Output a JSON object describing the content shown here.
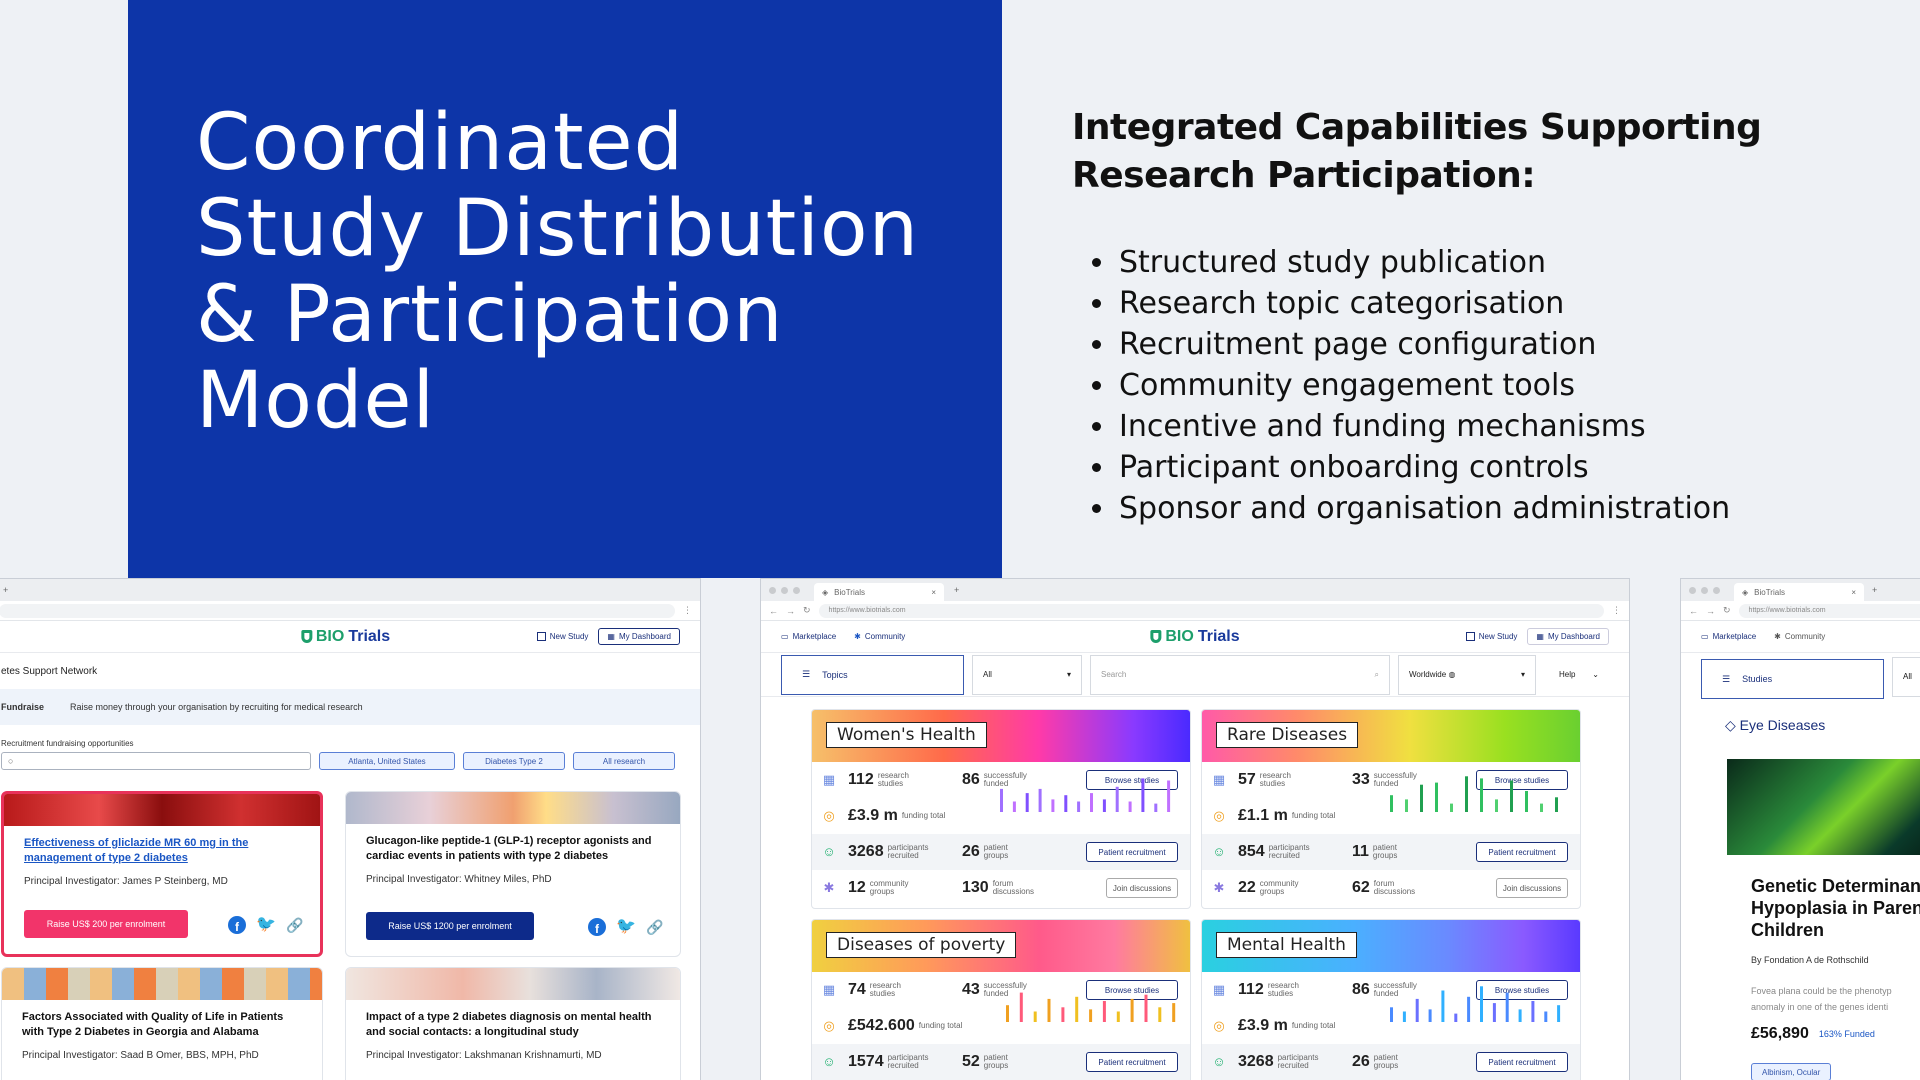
{
  "hero": {
    "title_lines": [
      "Coordinated",
      "Study Distribution",
      "& Participation",
      "Model"
    ]
  },
  "capabilities": {
    "title": "Integrated Capabilities Supporting Research Participation:",
    "items": [
      "Structured study publication",
      "Research topic categorisation",
      "Recruitment page configuration",
      "Community engagement tools",
      "Incentive and funding mechanisms",
      "Participant onboarding controls",
      "Sponsor and organisation administration"
    ]
  },
  "brand": {
    "logo_prefix": "BIO",
    "logo_suffix": "Trials",
    "primary": "#0d35a8",
    "green": "#1d9f6b"
  },
  "browser": {
    "tab_label": "BioTrials",
    "url": "https://www.biotrials.com"
  },
  "window1": {
    "new_study": "New Study",
    "my_dashboard": "My Dashboard",
    "network": "etes Support Network",
    "fund_label": "Fundraise",
    "fund_text": "Raise money through your organisation by recruiting for medical research",
    "opps_label": "Recruitment fundraising opportunities",
    "chips": [
      "Atlanta, United States",
      "Diabetes Type 2",
      "All research"
    ],
    "cards": [
      {
        "title": "Effectiveness of gliclazide MR 60 mg in the management of type 2 diabetes",
        "pi": "Principal Investigator: James P Steinberg, MD",
        "button": "Raise US$ 200 per enrolment"
      },
      {
        "title": "Glucagon-like peptide-1 (GLP-1) receptor agonists and cardiac events in patients with type 2 diabetes",
        "pi": "Principal Investigator: Whitney Miles, PhD",
        "button": "Raise US$ 1200 per enrolment"
      },
      {
        "title": "Factors Associated with Quality of Life in Patients with Type 2 Diabetes in Georgia and Alabama",
        "pi": "Principal Investigator: Saad B Omer, BBS, MPH, PhD"
      },
      {
        "title": "Impact of a type 2 diabetes diagnosis on mental health and social contacts: a longitudinal study",
        "pi": "Principal Investigator: Lakshmanan Krishnamurti, MD"
      }
    ]
  },
  "window2": {
    "nav": {
      "marketplace": "Marketplace",
      "community": "Community",
      "new_study": "New Study",
      "my_dashboard": "My Dashboard"
    },
    "filters": {
      "topics": "Topics",
      "all": "All",
      "search_placeholder": "Search",
      "region": "Worldwide",
      "help": "Help"
    },
    "labels": {
      "research_studies": "research studies",
      "successfully_funded": "successfully funded",
      "funding_total": "funding total",
      "participants_recruited": "participants recruited",
      "patient_groups": "patient groups",
      "community_groups": "community groups",
      "forum_discussions": "forum discussions",
      "browse": "Browse studies",
      "recruit": "Patient recruitment",
      "join": "Join discussions"
    },
    "tiles": [
      {
        "name": "Women's Health",
        "studies": "112",
        "funded": "86",
        "funding": "£3.9 m",
        "participants": "3268",
        "groups": "26",
        "community": "12",
        "forum": "130",
        "bars": [
          0.55,
          0.25,
          0.45,
          0.55,
          0.3,
          0.4,
          0.25,
          0.45,
          0.3,
          0.6,
          0.25,
          0.8,
          0.2,
          0.75
        ]
      },
      {
        "name": "Rare Diseases",
        "studies": "57",
        "funded": "33",
        "funding": "£1.1 m",
        "participants": "854",
        "groups": "11",
        "community": "22",
        "forum": "62",
        "bars": [
          0.4,
          0.3,
          0.65,
          0.7,
          0.2,
          0.85,
          0.8,
          0.3,
          0.75,
          0.5,
          0.2,
          0.35
        ]
      },
      {
        "name": "Diseases of poverty",
        "studies": "74",
        "funded": "43",
        "funding": "£542.600",
        "participants": "1574",
        "groups": "52"
      },
      {
        "name": "Mental Health",
        "studies": "112",
        "funded": "86",
        "funding": "£3.9 m",
        "participants": "3268",
        "groups": "26"
      }
    ]
  },
  "window3": {
    "nav": {
      "marketplace": "Marketplace",
      "community": "Community"
    },
    "studies": "Studies",
    "all": "All",
    "category": "Eye Diseases",
    "title_lines": [
      "Genetic Determinan",
      "Hypoplasia in Paren",
      "Children"
    ],
    "by": "By Fondation A de Rothschild",
    "desc_lines": [
      "Fovea plana could be the phenotyp",
      "anomaly in one of the genes identi"
    ],
    "price": "£56,890",
    "funded": "163% Funded",
    "tag": "Albinism, Ocular"
  }
}
